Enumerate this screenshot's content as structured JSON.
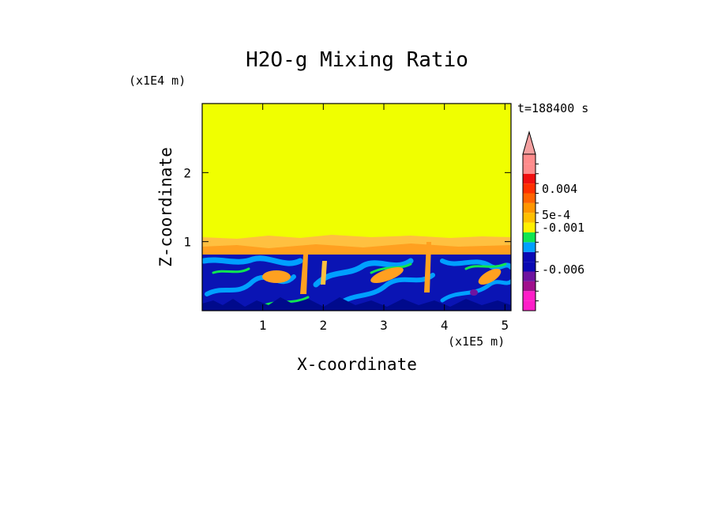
{
  "chart_data": {
    "type": "heatmap",
    "title": "H2O-g Mixing Ratio",
    "xlabel": "X-coordinate",
    "ylabel": "Z-coordinate",
    "x_unit": "(x1E5 m)",
    "y_unit": "(x1E4 m)",
    "time_label": "t=188400 s",
    "xlim": [
      0,
      5.1
    ],
    "ylim": [
      0,
      3.0
    ],
    "x_ticks": [
      "1",
      "2",
      "3",
      "4",
      "5"
    ],
    "y_ticks": [
      "1",
      "2"
    ],
    "colorbar": {
      "labels": [
        "0.004",
        "5e-4",
        "−-0.001",
        "−-0.006"
      ],
      "label_text": [
        "0.004",
        "5e-4",
        "-0.001",
        "-0.006"
      ],
      "colors_bottom_to_top": [
        "#ff1ec8",
        "#ff1ec8",
        "#a0108c",
        "#6e14a0",
        "#0a0ab4",
        "#0a0ab4",
        "#00a0ff",
        "#10e650",
        "#fff000",
        "#ffc000",
        "#ff9600",
        "#ff6400",
        "#ff3000",
        "#f01010",
        "#ff8c8c",
        "#ff8c8c"
      ],
      "extend_color": "#f4a0a0"
    },
    "regions": [
      {
        "name": "upper-dry-layer",
        "z_range": [
          1.05,
          3.0
        ],
        "color": "#f0ff00"
      },
      {
        "name": "transition-layer",
        "z_range": [
          0.8,
          1.05
        ],
        "color": "#ffc040"
      },
      {
        "name": "boundary-layer",
        "z_range": [
          0,
          0.8
        ],
        "color": "#0a14b4"
      }
    ]
  }
}
